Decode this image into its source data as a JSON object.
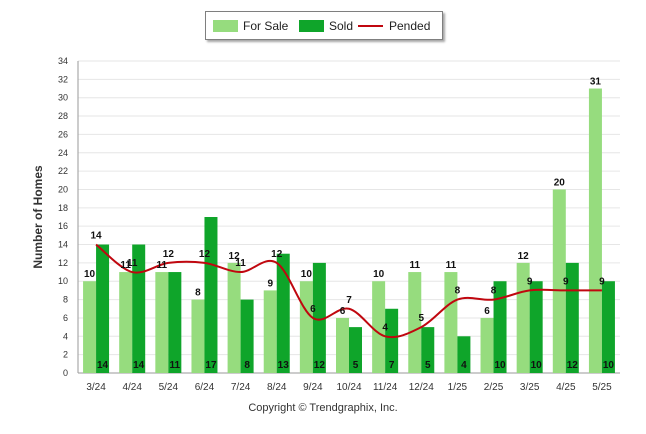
{
  "chart_data": {
    "type": "bar",
    "ylabel": "Number of Homes",
    "ylim": [
      0,
      34
    ],
    "yticks": [
      0,
      2,
      4,
      6,
      8,
      10,
      12,
      14,
      16,
      18,
      20,
      22,
      24,
      26,
      28,
      30,
      32,
      34
    ],
    "categories": [
      "3/24",
      "4/24",
      "5/24",
      "6/24",
      "7/24",
      "8/24",
      "9/24",
      "10/24",
      "11/24",
      "12/24",
      "1/25",
      "2/25",
      "3/25",
      "4/25",
      "5/25"
    ],
    "series": [
      {
        "name": "For Sale",
        "type": "bar",
        "color": "#96dc7e",
        "values": [
          10,
          11,
          11,
          8,
          12,
          9,
          10,
          6,
          10,
          11,
          11,
          6,
          12,
          20,
          31
        ]
      },
      {
        "name": "Sold",
        "type": "bar",
        "color": "#0fa52a",
        "values": [
          14,
          14,
          11,
          17,
          8,
          13,
          12,
          5,
          7,
          5,
          4,
          10,
          10,
          12,
          10
        ]
      },
      {
        "name": "Pended",
        "type": "line",
        "color": "#c0070f",
        "values": [
          14,
          11,
          12,
          12,
          11,
          12,
          6,
          7,
          4,
          5,
          8,
          8,
          9,
          9,
          9
        ]
      }
    ],
    "legend_position": "top-center",
    "grid": true
  },
  "footer": {
    "copyright": "Copyright © Trendgraphix, Inc."
  }
}
